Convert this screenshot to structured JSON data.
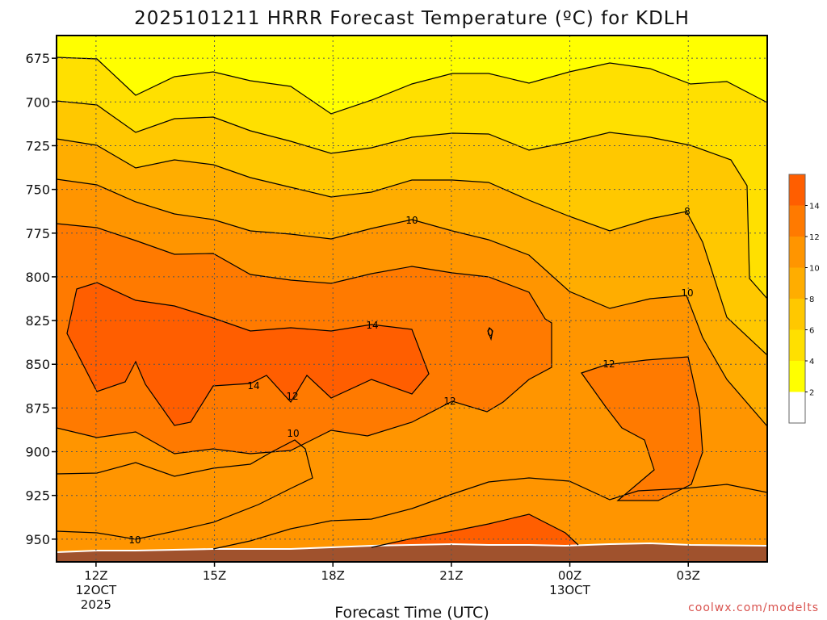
{
  "chart_data": {
    "type": "heatmap",
    "title": "2025101211 HRRR Forecast Temperature (ºC) for KDLH",
    "xlabel": "Forecast Time (UTC)",
    "ylabel": "",
    "x_ticks": [
      {
        "label": "12Z",
        "sub1": "12OCT",
        "sub2": "2025",
        "hour": 12
      },
      {
        "label": "15Z",
        "sub1": "",
        "sub2": "",
        "hour": 15
      },
      {
        "label": "18Z",
        "sub1": "",
        "sub2": "",
        "hour": 18
      },
      {
        "label": "21Z",
        "sub1": "",
        "sub2": "",
        "hour": 21
      },
      {
        "label": "00Z",
        "sub1": "13OCT",
        "sub2": "",
        "hour": 24
      },
      {
        "label": "03Z",
        "sub1": "",
        "sub2": "",
        "hour": 27
      }
    ],
    "x_range_hours": [
      11,
      29
    ],
    "y_ticks": [
      "675",
      "700",
      "725",
      "750",
      "775",
      "800",
      "825",
      "850",
      "875",
      "900",
      "925",
      "950"
    ],
    "y_range_hpa": [
      662,
      963
    ],
    "colorbar": {
      "ticks": [
        "2",
        "4",
        "6",
        "8",
        "10",
        "12",
        "14"
      ],
      "colors": [
        "#ffffff",
        "#ffff00",
        "#ffe000",
        "#ffc800",
        "#ffad00",
        "#ff9500",
        "#ff7a00",
        "#ff5e00"
      ]
    },
    "contour_labels": [
      "10",
      "8",
      "10",
      "14",
      "0",
      "12",
      "14",
      "12",
      "12",
      "10",
      "10"
    ],
    "ground_color": "#a0522d",
    "credit": "coolwx.com/modelts"
  }
}
